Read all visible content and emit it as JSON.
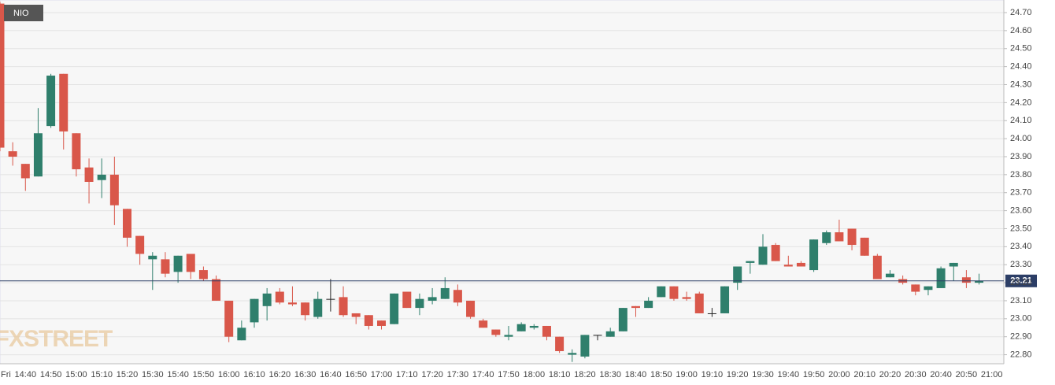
{
  "chart_data": {
    "type": "candlestick",
    "watermark": "FXSTREET",
    "categories": [
      "Fri",
      null,
      "14:40",
      null,
      "14:50",
      null,
      "15:00",
      null,
      "15:10",
      null,
      "15:20",
      null,
      "15:30",
      null,
      "15:40",
      null,
      "15:50",
      null,
      "16:00",
      null,
      "16:10",
      null,
      "16:20",
      null,
      "16:30",
      null,
      "16:40",
      null,
      "16:50",
      null,
      "17:00",
      null,
      "17:10",
      null,
      "17:20",
      null,
      "17:30",
      null,
      "17:40",
      null,
      "17:50",
      null,
      "18:00",
      null,
      "18:10",
      null,
      "18:20",
      null,
      "18:30",
      null,
      "18:40",
      null,
      "18:50",
      null,
      "19:00",
      null,
      "19:10",
      null,
      "19:20",
      null,
      "19:30",
      null,
      "19:40",
      null,
      "19:50",
      null,
      "20:00",
      null,
      "20:10",
      null,
      "20:20",
      null,
      "20:30",
      null,
      "20:40",
      null,
      "20:50",
      null,
      "21:00"
    ],
    "series": [
      {
        "name": "NIO",
        "up_color": "#2f7f6c",
        "down_color": "#d9574a",
        "flat_color": "#222222",
        "open": [
          24.75,
          23.93,
          23.86,
          23.79,
          24.07,
          24.36,
          24.03,
          23.84,
          23.77,
          23.8,
          23.61,
          23.46,
          23.33,
          23.33,
          23.26,
          23.36,
          23.27,
          23.22,
          23.1,
          22.88,
          22.98,
          23.07,
          23.15,
          23.09,
          23.09,
          23.01,
          23.11,
          23.12,
          23.03,
          23.02,
          22.99,
          22.97,
          23.15,
          23.06,
          23.1,
          23.11,
          23.16,
          23.1,
          22.99,
          22.94,
          22.9,
          22.93,
          22.95,
          22.96,
          22.9,
          22.8,
          22.79,
          22.91,
          22.9,
          22.93,
          23.07,
          23.06,
          23.12,
          23.18,
          23.12,
          23.14,
          23.03,
          23.03,
          23.2,
          23.31,
          23.3,
          23.41,
          23.3,
          23.31,
          23.27,
          23.42,
          23.48,
          23.5,
          23.45,
          23.35,
          23.23,
          23.22,
          23.19,
          23.16,
          23.17,
          23.29,
          23.23,
          23.2,
          null
        ],
        "high": [
          24.76,
          23.98,
          23.86,
          24.17,
          24.36,
          24.36,
          24.03,
          23.89,
          23.89,
          23.9,
          23.61,
          23.46,
          23.37,
          23.37,
          23.35,
          23.36,
          23.29,
          23.24,
          23.1,
          22.99,
          23.11,
          23.17,
          23.17,
          23.18,
          23.09,
          23.15,
          23.22,
          23.18,
          23.03,
          23.02,
          22.99,
          23.14,
          23.15,
          23.14,
          23.17,
          23.23,
          23.19,
          23.1,
          23.0,
          22.94,
          22.96,
          22.98,
          22.97,
          22.96,
          22.9,
          22.83,
          22.91,
          22.91,
          22.95,
          23.06,
          23.07,
          23.12,
          23.18,
          23.18,
          23.15,
          23.15,
          23.06,
          23.18,
          23.29,
          23.32,
          23.47,
          23.42,
          23.35,
          23.32,
          23.44,
          23.49,
          23.55,
          23.5,
          23.45,
          23.36,
          23.27,
          23.24,
          23.19,
          23.18,
          23.29,
          23.31,
          23.27,
          23.25,
          null
        ],
        "low": [
          23.93,
          23.85,
          23.71,
          23.79,
          24.06,
          23.94,
          23.79,
          23.64,
          23.67,
          23.52,
          23.4,
          23.3,
          23.16,
          23.23,
          23.2,
          23.22,
          23.21,
          23.1,
          22.87,
          22.88,
          22.95,
          22.99,
          23.08,
          23.07,
          22.99,
          23.0,
          23.04,
          23.01,
          22.97,
          22.94,
          22.94,
          22.97,
          23.06,
          23.02,
          23.08,
          23.11,
          23.07,
          23.0,
          22.95,
          22.9,
          22.88,
          22.93,
          22.94,
          22.88,
          22.81,
          22.76,
          22.78,
          22.88,
          22.9,
          22.93,
          23.01,
          23.06,
          23.12,
          23.1,
          23.1,
          23.03,
          23.01,
          23.03,
          23.16,
          23.25,
          23.3,
          23.32,
          23.29,
          23.29,
          23.26,
          23.41,
          23.43,
          23.38,
          23.35,
          23.22,
          23.23,
          23.19,
          23.13,
          23.13,
          23.17,
          23.21,
          23.17,
          23.19,
          null
        ],
        "close": [
          23.95,
          23.9,
          23.78,
          24.03,
          24.35,
          24.04,
          23.83,
          23.76,
          23.8,
          23.63,
          23.45,
          23.36,
          23.35,
          23.25,
          23.35,
          23.26,
          23.22,
          23.1,
          22.9,
          22.95,
          23.11,
          23.14,
          23.09,
          23.08,
          23.02,
          23.11,
          23.11,
          23.02,
          23.01,
          22.96,
          22.96,
          23.14,
          23.06,
          23.11,
          23.12,
          23.17,
          23.09,
          23.01,
          22.95,
          22.91,
          22.91,
          22.97,
          22.96,
          22.9,
          22.82,
          22.81,
          22.91,
          22.91,
          22.93,
          23.06,
          23.06,
          23.1,
          23.18,
          23.11,
          23.11,
          23.03,
          23.03,
          23.18,
          23.29,
          23.32,
          23.4,
          23.32,
          23.29,
          23.29,
          23.44,
          23.48,
          23.43,
          23.41,
          23.35,
          23.22,
          23.25,
          23.2,
          23.15,
          23.18,
          23.28,
          23.31,
          23.2,
          23.21,
          null
        ]
      }
    ],
    "last_price": 23.21,
    "last_price_color": "#2c3e66",
    "ylim": [
      22.75,
      24.77
    ],
    "yticks": [
      {
        "value": 22.8,
        "label": "22.80"
      },
      {
        "value": 22.9,
        "label": "22.90"
      },
      {
        "value": 23.0,
        "label": "23.00"
      },
      {
        "value": 23.1,
        "label": "23.10"
      },
      {
        "value": 23.2,
        "label": "23.20"
      },
      {
        "value": 23.3,
        "label": "23.30"
      },
      {
        "value": 23.4,
        "label": "23.40"
      },
      {
        "value": 23.5,
        "label": "23.50"
      },
      {
        "value": 23.6,
        "label": "23.60"
      },
      {
        "value": 23.7,
        "label": "23.70"
      },
      {
        "value": 23.8,
        "label": "23.80"
      },
      {
        "value": 23.9,
        "label": "23.90"
      },
      {
        "value": 24.0,
        "label": "24.00"
      },
      {
        "value": 24.1,
        "label": "24.10"
      },
      {
        "value": 24.2,
        "label": "24.20"
      },
      {
        "value": 24.3,
        "label": "24.30"
      },
      {
        "value": 24.4,
        "label": "24.40"
      },
      {
        "value": 24.5,
        "label": "24.50"
      },
      {
        "value": 24.6,
        "label": "24.60"
      },
      {
        "value": 24.7,
        "label": "24.70"
      }
    ],
    "grid": true
  }
}
